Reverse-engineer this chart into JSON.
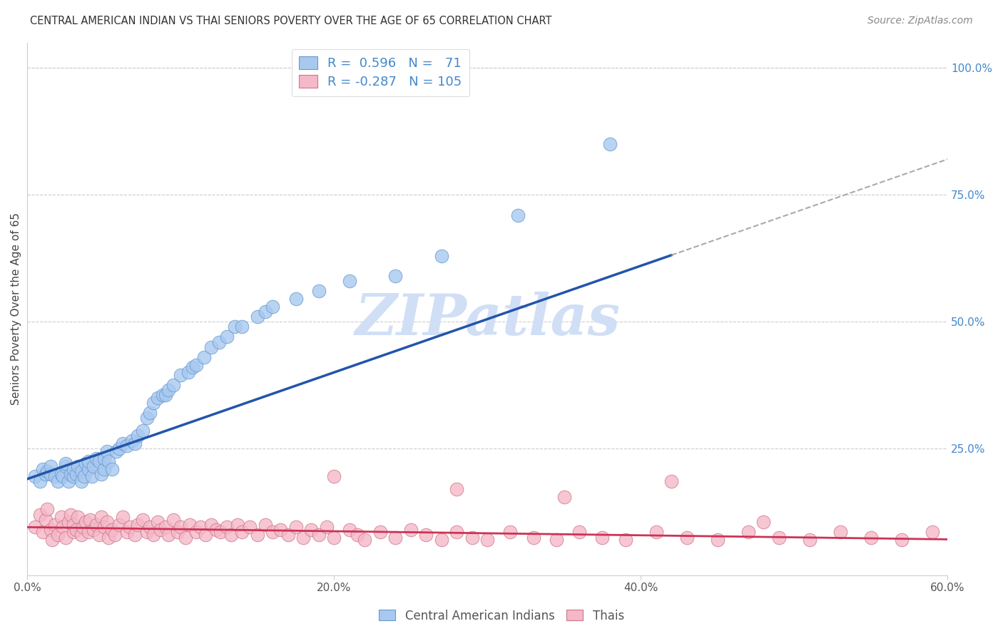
{
  "title": "CENTRAL AMERICAN INDIAN VS THAI SENIORS POVERTY OVER THE AGE OF 65 CORRELATION CHART",
  "source": "Source: ZipAtlas.com",
  "ylabel": "Seniors Poverty Over the Age of 65",
  "xlim": [
    0.0,
    0.6
  ],
  "ylim": [
    0.0,
    1.05
  ],
  "xtick_vals": [
    0.0,
    0.2,
    0.4,
    0.6
  ],
  "xtick_labels": [
    "0.0%",
    "20.0%",
    "40.0%",
    "60.0%"
  ],
  "ytick_vals": [
    0.25,
    0.5,
    0.75,
    1.0
  ],
  "ytick_labels": [
    "25.0%",
    "50.0%",
    "75.0%",
    "100.0%"
  ],
  "blue_color": "#A8C8F0",
  "blue_edge_color": "#6699CC",
  "pink_color": "#F5B8C8",
  "pink_edge_color": "#CC7788",
  "blue_line_color": "#2255AA",
  "pink_line_color": "#CC3355",
  "dash_line_color": "#AAAAAA",
  "watermark_text": "ZIPatlas",
  "watermark_color": "#D0DFF5",
  "grid_color": "#CCCCCC",
  "title_color": "#333333",
  "source_color": "#888888",
  "right_tick_color": "#4488CC",
  "legend_label_color": "#4488CC",
  "blue_line_intercept": 0.19,
  "blue_line_slope": 1.05,
  "pink_line_intercept": 0.095,
  "pink_line_slope": -0.04,
  "blue_points_x": [
    0.005,
    0.008,
    0.01,
    0.012,
    0.013,
    0.015,
    0.015,
    0.018,
    0.02,
    0.022,
    0.023,
    0.025,
    0.025,
    0.027,
    0.028,
    0.03,
    0.03,
    0.032,
    0.033,
    0.035,
    0.035,
    0.037,
    0.038,
    0.04,
    0.04,
    0.042,
    0.043,
    0.045,
    0.047,
    0.048,
    0.05,
    0.05,
    0.052,
    0.053,
    0.055,
    0.058,
    0.06,
    0.062,
    0.065,
    0.068,
    0.07,
    0.072,
    0.075,
    0.078,
    0.08,
    0.082,
    0.085,
    0.088,
    0.09,
    0.092,
    0.095,
    0.1,
    0.105,
    0.108,
    0.11,
    0.115,
    0.12,
    0.125,
    0.13,
    0.135,
    0.14,
    0.15,
    0.155,
    0.16,
    0.175,
    0.19,
    0.21,
    0.24,
    0.27,
    0.32,
    0.38
  ],
  "blue_points_y": [
    0.195,
    0.185,
    0.21,
    0.2,
    0.205,
    0.2,
    0.215,
    0.195,
    0.185,
    0.2,
    0.195,
    0.215,
    0.22,
    0.185,
    0.2,
    0.195,
    0.21,
    0.2,
    0.215,
    0.205,
    0.185,
    0.195,
    0.22,
    0.21,
    0.225,
    0.195,
    0.215,
    0.23,
    0.225,
    0.2,
    0.21,
    0.23,
    0.245,
    0.225,
    0.21,
    0.245,
    0.25,
    0.26,
    0.255,
    0.265,
    0.26,
    0.275,
    0.285,
    0.31,
    0.32,
    0.34,
    0.35,
    0.355,
    0.355,
    0.365,
    0.375,
    0.395,
    0.4,
    0.41,
    0.415,
    0.43,
    0.45,
    0.46,
    0.47,
    0.49,
    0.49,
    0.51,
    0.52,
    0.53,
    0.545,
    0.56,
    0.58,
    0.59,
    0.63,
    0.71,
    0.85
  ],
  "pink_points_x": [
    0.005,
    0.008,
    0.01,
    0.012,
    0.013,
    0.015,
    0.016,
    0.018,
    0.02,
    0.022,
    0.023,
    0.025,
    0.027,
    0.028,
    0.03,
    0.03,
    0.032,
    0.033,
    0.035,
    0.036,
    0.038,
    0.04,
    0.041,
    0.043,
    0.045,
    0.047,
    0.048,
    0.05,
    0.052,
    0.053,
    0.055,
    0.057,
    0.06,
    0.062,
    0.065,
    0.067,
    0.07,
    0.072,
    0.075,
    0.078,
    0.08,
    0.082,
    0.085,
    0.087,
    0.09,
    0.092,
    0.095,
    0.098,
    0.1,
    0.103,
    0.106,
    0.11,
    0.113,
    0.116,
    0.12,
    0.123,
    0.126,
    0.13,
    0.133,
    0.137,
    0.14,
    0.145,
    0.15,
    0.155,
    0.16,
    0.165,
    0.17,
    0.175,
    0.18,
    0.185,
    0.19,
    0.195,
    0.2,
    0.21,
    0.215,
    0.22,
    0.23,
    0.24,
    0.25,
    0.26,
    0.27,
    0.28,
    0.29,
    0.3,
    0.315,
    0.33,
    0.345,
    0.36,
    0.375,
    0.39,
    0.41,
    0.43,
    0.45,
    0.47,
    0.49,
    0.51,
    0.53,
    0.55,
    0.57,
    0.59,
    0.2,
    0.28,
    0.35,
    0.42,
    0.48
  ],
  "pink_points_y": [
    0.095,
    0.12,
    0.085,
    0.11,
    0.13,
    0.09,
    0.07,
    0.1,
    0.08,
    0.115,
    0.095,
    0.075,
    0.105,
    0.12,
    0.085,
    0.1,
    0.09,
    0.115,
    0.08,
    0.095,
    0.105,
    0.085,
    0.11,
    0.09,
    0.1,
    0.08,
    0.115,
    0.095,
    0.105,
    0.075,
    0.09,
    0.08,
    0.1,
    0.115,
    0.085,
    0.095,
    0.08,
    0.1,
    0.11,
    0.085,
    0.095,
    0.08,
    0.105,
    0.09,
    0.095,
    0.08,
    0.11,
    0.085,
    0.095,
    0.075,
    0.1,
    0.085,
    0.095,
    0.08,
    0.1,
    0.09,
    0.085,
    0.095,
    0.08,
    0.1,
    0.085,
    0.095,
    0.08,
    0.1,
    0.085,
    0.09,
    0.08,
    0.095,
    0.075,
    0.09,
    0.08,
    0.095,
    0.075,
    0.09,
    0.08,
    0.07,
    0.085,
    0.075,
    0.09,
    0.08,
    0.07,
    0.085,
    0.075,
    0.07,
    0.085,
    0.075,
    0.07,
    0.085,
    0.075,
    0.07,
    0.085,
    0.075,
    0.07,
    0.085,
    0.075,
    0.07,
    0.085,
    0.075,
    0.07,
    0.085,
    0.195,
    0.17,
    0.155,
    0.185,
    0.105
  ]
}
